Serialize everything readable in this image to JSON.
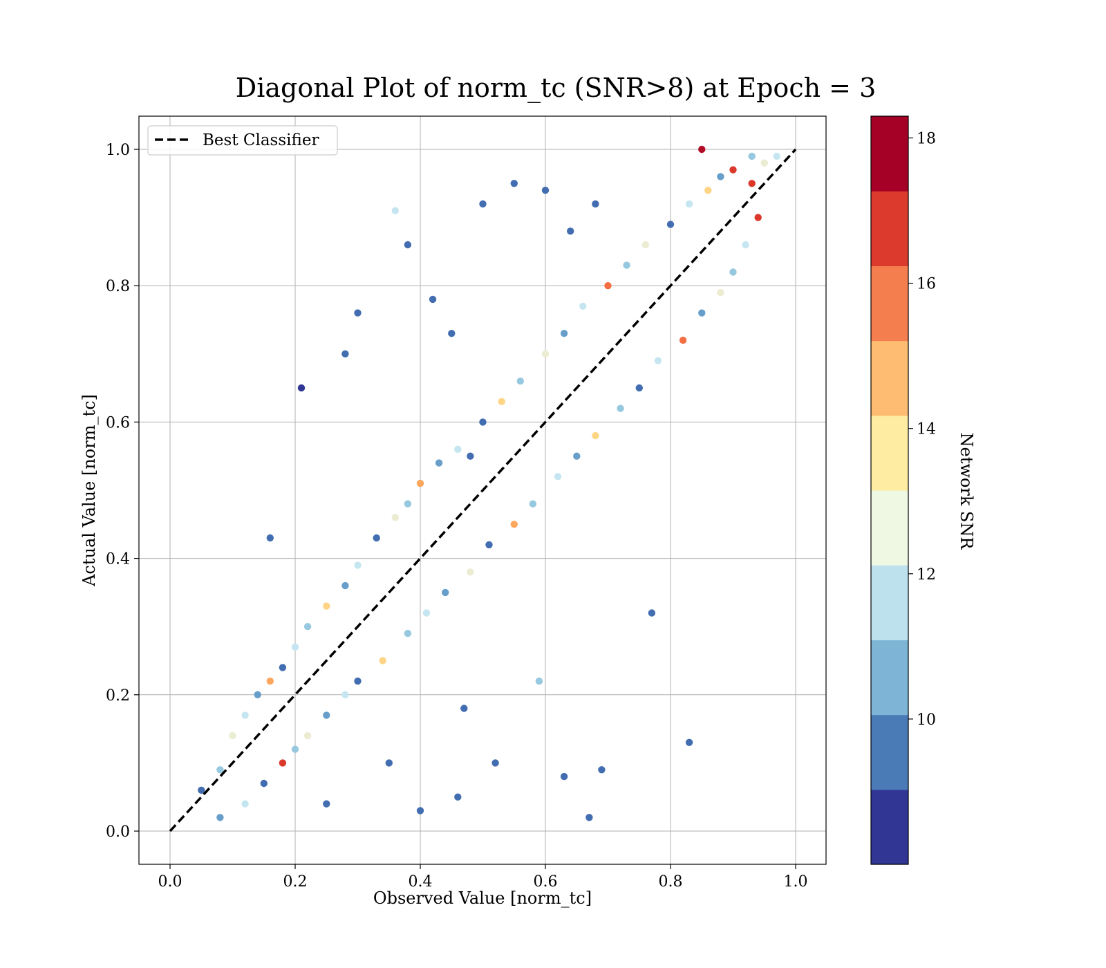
{
  "chart_data": {
    "type": "scatter",
    "title": "Diagonal Plot of norm_tc (SNR>8) at Epoch = 3",
    "xlabel": "Observed Value [norm_tc]",
    "ylabel": "Actual Value [norm_tc]",
    "xlim": [
      -0.05,
      1.05
    ],
    "ylim": [
      -0.05,
      1.05
    ],
    "x_ticks": [
      "0.0",
      "0.2",
      "0.4",
      "0.6",
      "0.8",
      "1.0"
    ],
    "y_ticks": [
      "0.0",
      "0.2",
      "0.4",
      "0.6",
      "0.8",
      "1.0"
    ],
    "grid": true,
    "legend": {
      "placement": "top-left",
      "entries": [
        {
          "label": "Best Classifier",
          "style": "dashed",
          "color": "#000000"
        }
      ]
    },
    "reference_line": {
      "label": "Best Classifier",
      "x": [
        0.0,
        1.0
      ],
      "y": [
        0.0,
        1.0
      ]
    },
    "colorbar": {
      "label": "Network SNR",
      "range": [
        8.0,
        18.3
      ],
      "ticks": [
        "10",
        "12",
        "14",
        "16",
        "18"
      ],
      "tick_values": [
        10,
        12,
        14,
        16,
        18
      ],
      "colors": [
        "#313695",
        "#4575b4",
        "#74add1",
        "#abd9e9",
        "#e0f3f8",
        "#fee090",
        "#fdae61",
        "#f46d43",
        "#d73027",
        "#a50026"
      ],
      "bands": [
        "#313695",
        "#4a7bb7",
        "#7eb5d6",
        "#bde2ed",
        "#eef8e2",
        "#fdeca2",
        "#fdbc72",
        "#f57e4f",
        "#dc3a2c",
        "#a50026"
      ]
    },
    "series": [
      {
        "x": [
          0.05,
          0.08,
          0.1,
          0.12,
          0.14,
          0.16,
          0.18,
          0.2,
          0.22,
          0.25,
          0.28,
          0.3,
          0.33,
          0.36,
          0.38,
          0.4,
          0.43,
          0.46,
          0.5,
          0.53,
          0.56,
          0.6,
          0.63,
          0.66,
          0.7,
          0.73,
          0.76,
          0.8,
          0.83,
          0.86,
          0.88,
          0.9,
          0.93,
          0.95,
          0.97,
          0.08,
          0.12,
          0.15,
          0.18,
          0.2,
          0.22,
          0.25,
          0.28,
          0.3,
          0.34,
          0.38,
          0.41,
          0.44,
          0.48,
          0.51,
          0.55,
          0.58,
          0.62,
          0.65,
          0.68,
          0.72,
          0.75,
          0.78,
          0.82,
          0.85,
          0.88,
          0.9,
          0.92,
          0.94,
          0.38,
          0.3,
          0.28,
          0.21,
          0.16,
          0.42,
          0.45,
          0.48,
          0.5,
          0.55,
          0.6,
          0.64,
          0.68,
          0.77,
          0.83,
          0.67,
          0.63,
          0.69,
          0.52,
          0.46,
          0.35,
          0.4,
          0.25,
          0.85,
          0.93,
          0.59,
          0.47,
          0.36
        ],
        "y": [
          0.06,
          0.09,
          0.14,
          0.17,
          0.2,
          0.22,
          0.24,
          0.27,
          0.3,
          0.33,
          0.36,
          0.39,
          0.43,
          0.46,
          0.48,
          0.51,
          0.54,
          0.56,
          0.6,
          0.63,
          0.66,
          0.7,
          0.73,
          0.77,
          0.8,
          0.83,
          0.86,
          0.89,
          0.92,
          0.94,
          0.96,
          0.97,
          0.99,
          0.98,
          0.99,
          0.02,
          0.04,
          0.07,
          0.1,
          0.12,
          0.14,
          0.17,
          0.2,
          0.22,
          0.25,
          0.29,
          0.32,
          0.35,
          0.38,
          0.42,
          0.45,
          0.48,
          0.52,
          0.55,
          0.58,
          0.62,
          0.65,
          0.69,
          0.72,
          0.76,
          0.79,
          0.82,
          0.86,
          0.9,
          0.86,
          0.76,
          0.7,
          0.65,
          0.43,
          0.78,
          0.73,
          0.55,
          0.92,
          0.95,
          0.94,
          0.88,
          0.92,
          0.32,
          0.13,
          0.02,
          0.08,
          0.09,
          0.1,
          0.05,
          0.1,
          0.03,
          0.04,
          1.0,
          0.95,
          0.22,
          0.18,
          0.91
        ],
        "snr": [
          9,
          11,
          13,
          12,
          10,
          15,
          9,
          12,
          11,
          14,
          10,
          12,
          9,
          13,
          11,
          15,
          10,
          12,
          9,
          14,
          11,
          13,
          10,
          12,
          16,
          11,
          13,
          9,
          12,
          14,
          10,
          17,
          11,
          13,
          12,
          10,
          12,
          9,
          17,
          11,
          13,
          10,
          12,
          9,
          14,
          11,
          12,
          10,
          13,
          9,
          15,
          11,
          12,
          10,
          14,
          11,
          9,
          12,
          16,
          10,
          13,
          11,
          12,
          17,
          9,
          9,
          9,
          8,
          9,
          9,
          9,
          9,
          9,
          9,
          9,
          9,
          9,
          9,
          9,
          9,
          9,
          9,
          9,
          9,
          9,
          9,
          9,
          18,
          17,
          11,
          9,
          12
        ]
      }
    ]
  }
}
